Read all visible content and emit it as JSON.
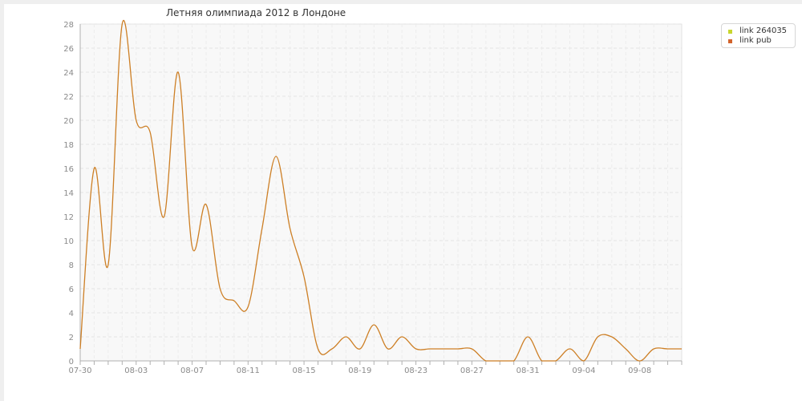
{
  "chart_data": {
    "type": "line",
    "title": "Летняя олимпиада 2012 в Лондоне",
    "xlabel": "",
    "ylabel": "",
    "ylim": [
      0,
      28
    ],
    "y_ticks": [
      0,
      2,
      4,
      6,
      8,
      10,
      12,
      14,
      16,
      18,
      20,
      22,
      24,
      26,
      28
    ],
    "x_tick_labels": [
      "07-30",
      "08-03",
      "08-07",
      "08-11",
      "08-15",
      "08-19",
      "08-23",
      "08-27",
      "08-31",
      "09-04",
      "09-08"
    ],
    "x_tick_days": [
      0,
      4,
      8,
      12,
      16,
      20,
      24,
      28,
      32,
      36,
      40
    ],
    "x_range_days": [
      0,
      43
    ],
    "grid": true,
    "legend_position": "top-right",
    "legend": [
      {
        "label": "link 264035",
        "color": "#c8d62e"
      },
      {
        "label": "link pub",
        "color": "#d2632c"
      }
    ],
    "series": [
      {
        "name": "link pub",
        "color": "#cd7f25",
        "x_days": [
          0,
          1,
          2,
          3,
          4,
          5,
          6,
          7,
          8,
          9,
          10,
          11,
          12,
          13,
          14,
          15,
          16,
          17,
          18,
          19,
          20,
          21,
          22,
          23,
          24,
          25,
          26,
          27,
          28,
          29,
          30,
          31,
          32,
          33,
          34,
          35,
          36,
          37,
          38,
          39,
          40,
          41,
          42,
          43
        ],
        "values": [
          1,
          16,
          8,
          28,
          20,
          19,
          12,
          24,
          9.5,
          13,
          6,
          5,
          4.5,
          11,
          17,
          11,
          7,
          1,
          1,
          2,
          1,
          3,
          1,
          2,
          1,
          1,
          1,
          1,
          1,
          0,
          0,
          0,
          2,
          0,
          0,
          1,
          0,
          2,
          2,
          1,
          0,
          1,
          1,
          1
        ]
      }
    ]
  }
}
